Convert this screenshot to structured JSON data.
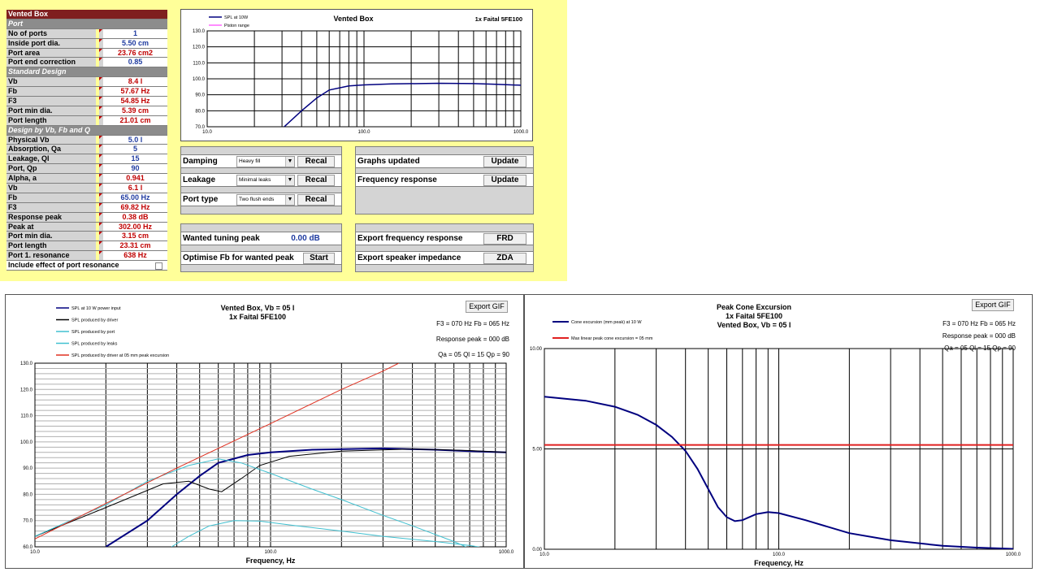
{
  "params": {
    "title": "Vented Box",
    "rows": [
      {
        "type": "sect",
        "label": "Port"
      },
      {
        "label": "No of ports",
        "value": "1",
        "color": "blue"
      },
      {
        "label": "Inside port dia.",
        "value": "5.50 cm",
        "color": "blue"
      },
      {
        "label": "Port area",
        "value": "23.76 cm2",
        "color": "red"
      },
      {
        "label": "Port end correction",
        "value": "0.85",
        "color": "blue"
      },
      {
        "type": "sect",
        "label": "Standard Design"
      },
      {
        "label": "Vb",
        "value": "8.4 l",
        "color": "red"
      },
      {
        "label": "Fb",
        "value": "57.67 Hz",
        "color": "red"
      },
      {
        "label": "F3",
        "value": "54.85 Hz",
        "color": "red"
      },
      {
        "label": "Port min dia.",
        "value": "5.39 cm",
        "color": "red"
      },
      {
        "label": "Port length",
        "value": "21.01 cm",
        "color": "red"
      },
      {
        "type": "sect",
        "label": "Design by Vb, Fb and Q"
      },
      {
        "label": "Physical Vb",
        "value": "5.0 l",
        "color": "blue"
      },
      {
        "label": "Absorption, Qa",
        "value": "5",
        "color": "blue"
      },
      {
        "label": "Leakage, Ql",
        "value": "15",
        "color": "blue"
      },
      {
        "label": "Port, Qp",
        "value": "90",
        "color": "blue"
      },
      {
        "label": "Alpha, a",
        "value": "0.941",
        "color": "red"
      },
      {
        "label": "Vb",
        "value": "6.1 l",
        "color": "red"
      },
      {
        "label": "Fb",
        "value": "65.00 Hz",
        "color": "blue"
      },
      {
        "label": "F3",
        "value": "69.82 Hz",
        "color": "red"
      },
      {
        "label": "Response peak",
        "value": "0.38 dB",
        "color": "red"
      },
      {
        "label": "Peak at",
        "value": "302.00 Hz",
        "color": "red"
      },
      {
        "label": "Port min dia.",
        "value": "3.15 cm",
        "color": "red"
      },
      {
        "label": "Port length",
        "value": "23.31 cm",
        "color": "red"
      },
      {
        "label": "Port 1. resonance",
        "value": "638 Hz",
        "color": "red"
      },
      {
        "type": "check",
        "label": "Include effect of port resonance",
        "value": ""
      }
    ]
  },
  "controls": {
    "damping": {
      "label": "Damping",
      "select": "Heavy fill",
      "button": "Recal"
    },
    "leakage": {
      "label": "Leakage",
      "select": "Minimal leaks",
      "button": "Recal"
    },
    "porttype": {
      "label": "Port type",
      "select": "Two flush ends",
      "button": "Recal"
    },
    "graphs_updated": {
      "label": "Graphs updated",
      "button": "Update"
    },
    "freq_response": {
      "label": "Frequency response",
      "button": "Update"
    },
    "wanted_peak": {
      "label": "Wanted tuning peak",
      "value": "0.00 dB"
    },
    "optimise": {
      "label": "Optimise Fb for wanted peak",
      "button": "Start"
    },
    "export_freq": {
      "label": "Export frequency response",
      "button": "FRD"
    },
    "export_imp": {
      "label": "Export speaker impedance",
      "button": "ZDA"
    }
  },
  "chart_data": [
    {
      "type": "line",
      "title": "Vented Box",
      "subtitle": "1x Faital 5FE100",
      "legend": [
        "SPL at 10W",
        "Piston range"
      ],
      "xscale": "log",
      "xlim": [
        10,
        1000
      ],
      "ylim": [
        70,
        130
      ],
      "xticks": [
        "10.0",
        "100.0",
        "1000.0"
      ],
      "yticks": [
        "70.0",
        "80.0",
        "90.0",
        "100.0",
        "110.0",
        "120.0",
        "130.0"
      ],
      "series": [
        {
          "name": "SPL at 10W",
          "color": "#00007f",
          "points": [
            [
              31,
              70
            ],
            [
              40,
              80
            ],
            [
              50,
              88
            ],
            [
              60,
              93
            ],
            [
              80,
              95.5
            ],
            [
              100,
              96.2
            ],
            [
              150,
              96.8
            ],
            [
              300,
              97.2
            ],
            [
              500,
              97
            ],
            [
              700,
              96.6
            ],
            [
              1000,
              96
            ]
          ]
        }
      ]
    },
    {
      "type": "line",
      "title": "Vented Box, Vb = 05 l",
      "subtitle": "1x Faital 5FE100",
      "export_label": "Export GIF",
      "info": [
        "F3 = 070 Hz  Fb = 065 Hz",
        "Response peak = 000 dB",
        "Qa = 05  Ql = 15  Qp = 90"
      ],
      "legend": [
        "SPL at 10 W power input",
        "SPL produced by driver",
        "SPL produced by port",
        "SPL produced by leaks",
        "SPL produced by driver at 05 mm peak excursion"
      ],
      "xscale": "log",
      "xlim": [
        10,
        1000
      ],
      "ylim": [
        60,
        130
      ],
      "xlabel": "Frequency, Hz",
      "xticks": [
        "10.0",
        "100.0",
        "1000.0"
      ],
      "yticks": [
        "60.0",
        "70.0",
        "80.0",
        "90.0",
        "100.0",
        "110.0",
        "120.0",
        "130.0"
      ],
      "series": [
        {
          "name": "SPL at 10 W power input",
          "color": "#00007f",
          "width": 2,
          "points": [
            [
              20,
              60
            ],
            [
              30,
              70
            ],
            [
              40,
              80
            ],
            [
              50,
              87
            ],
            [
              60,
              92
            ],
            [
              80,
              95
            ],
            [
              100,
              96
            ],
            [
              150,
              97
            ],
            [
              300,
              97.5
            ],
            [
              500,
              97
            ],
            [
              700,
              96.5
            ],
            [
              1000,
              96
            ]
          ]
        },
        {
          "name": "SPL produced by driver",
          "color": "#000000",
          "width": 1,
          "points": [
            [
              10,
              64
            ],
            [
              20,
              75
            ],
            [
              35,
              84
            ],
            [
              45,
              85
            ],
            [
              55,
              82
            ],
            [
              62,
              81
            ],
            [
              75,
              86
            ],
            [
              90,
              91
            ],
            [
              120,
              94.5
            ],
            [
              200,
              96.5
            ],
            [
              400,
              97.3
            ],
            [
              700,
              96.7
            ],
            [
              1000,
              96
            ]
          ]
        },
        {
          "name": "SPL produced by port",
          "color": "#40c0d0",
          "width": 1,
          "points": [
            [
              10,
              64
            ],
            [
              20,
              76
            ],
            [
              30,
              85
            ],
            [
              45,
              91
            ],
            [
              60,
              93.5
            ],
            [
              75,
              92
            ],
            [
              100,
              88
            ],
            [
              150,
              82
            ],
            [
              200,
              78
            ],
            [
              300,
              72
            ],
            [
              400,
              68
            ],
            [
              600,
              62
            ],
            [
              800,
              57
            ]
          ]
        },
        {
          "name": "SPL produced by leaks",
          "color": "#40c0d0",
          "width": 1,
          "points": [
            [
              38,
              60
            ],
            [
              45,
              64
            ],
            [
              55,
              68
            ],
            [
              70,
              70
            ],
            [
              90,
              69.8
            ],
            [
              130,
              68
            ],
            [
              200,
              66
            ],
            [
              300,
              64
            ],
            [
              500,
              62
            ],
            [
              700,
              60.5
            ],
            [
              900,
              59
            ]
          ]
        },
        {
          "name": "SPL produced by driver at 05 mm peak excursion",
          "color": "#e03020",
          "width": 1,
          "points": [
            [
              10,
              63
            ],
            [
              40,
              90
            ],
            [
              100,
              107
            ],
            [
              200,
              120
            ],
            [
              300,
              127
            ],
            [
              350,
              130
            ]
          ]
        }
      ]
    },
    {
      "type": "line",
      "title": "Peak Cone Excursion",
      "subtitle": "1x Faital 5FE100",
      "subtitle2": "Vented Box, Vb = 05 l",
      "export_label": "Export GIF",
      "info": [
        "F3 = 070 Hz  Fb = 065 Hz",
        "Response peak = 000 dB",
        "Qa = 05  Ql = 15  Qp = 90"
      ],
      "legend": [
        "Cone excursion (mm peak) at 10 W",
        "Max linear peak cone excursion = 05 mm"
      ],
      "xscale": "log",
      "xlim": [
        10,
        1000
      ],
      "ylim": [
        0,
        10
      ],
      "xlabel": "Frequency, Hz",
      "xticks": [
        "10.0",
        "100.0",
        "1000.0"
      ],
      "yticks": [
        "0.00",
        "5.00",
        "10.00"
      ],
      "series": [
        {
          "name": "Cone excursion (mm peak) at 10 W",
          "color": "#00007f",
          "width": 2,
          "points": [
            [
              10,
              7.6
            ],
            [
              15,
              7.4
            ],
            [
              20,
              7.1
            ],
            [
              25,
              6.7
            ],
            [
              30,
              6.2
            ],
            [
              35,
              5.6
            ],
            [
              40,
              4.9
            ],
            [
              45,
              4
            ],
            [
              50,
              3
            ],
            [
              55,
              2.1
            ],
            [
              60,
              1.6
            ],
            [
              65,
              1.4
            ],
            [
              70,
              1.45
            ],
            [
              80,
              1.75
            ],
            [
              90,
              1.85
            ],
            [
              100,
              1.8
            ],
            [
              130,
              1.45
            ],
            [
              200,
              0.8
            ],
            [
              300,
              0.45
            ],
            [
              500,
              0.17
            ],
            [
              700,
              0.08
            ],
            [
              1000,
              0.02
            ]
          ]
        },
        {
          "name": "Max linear peak cone excursion = 05 mm",
          "color": "#e02020",
          "width": 2,
          "points": [
            [
              10,
              5.2
            ],
            [
              1000,
              5.2
            ]
          ]
        }
      ]
    }
  ]
}
